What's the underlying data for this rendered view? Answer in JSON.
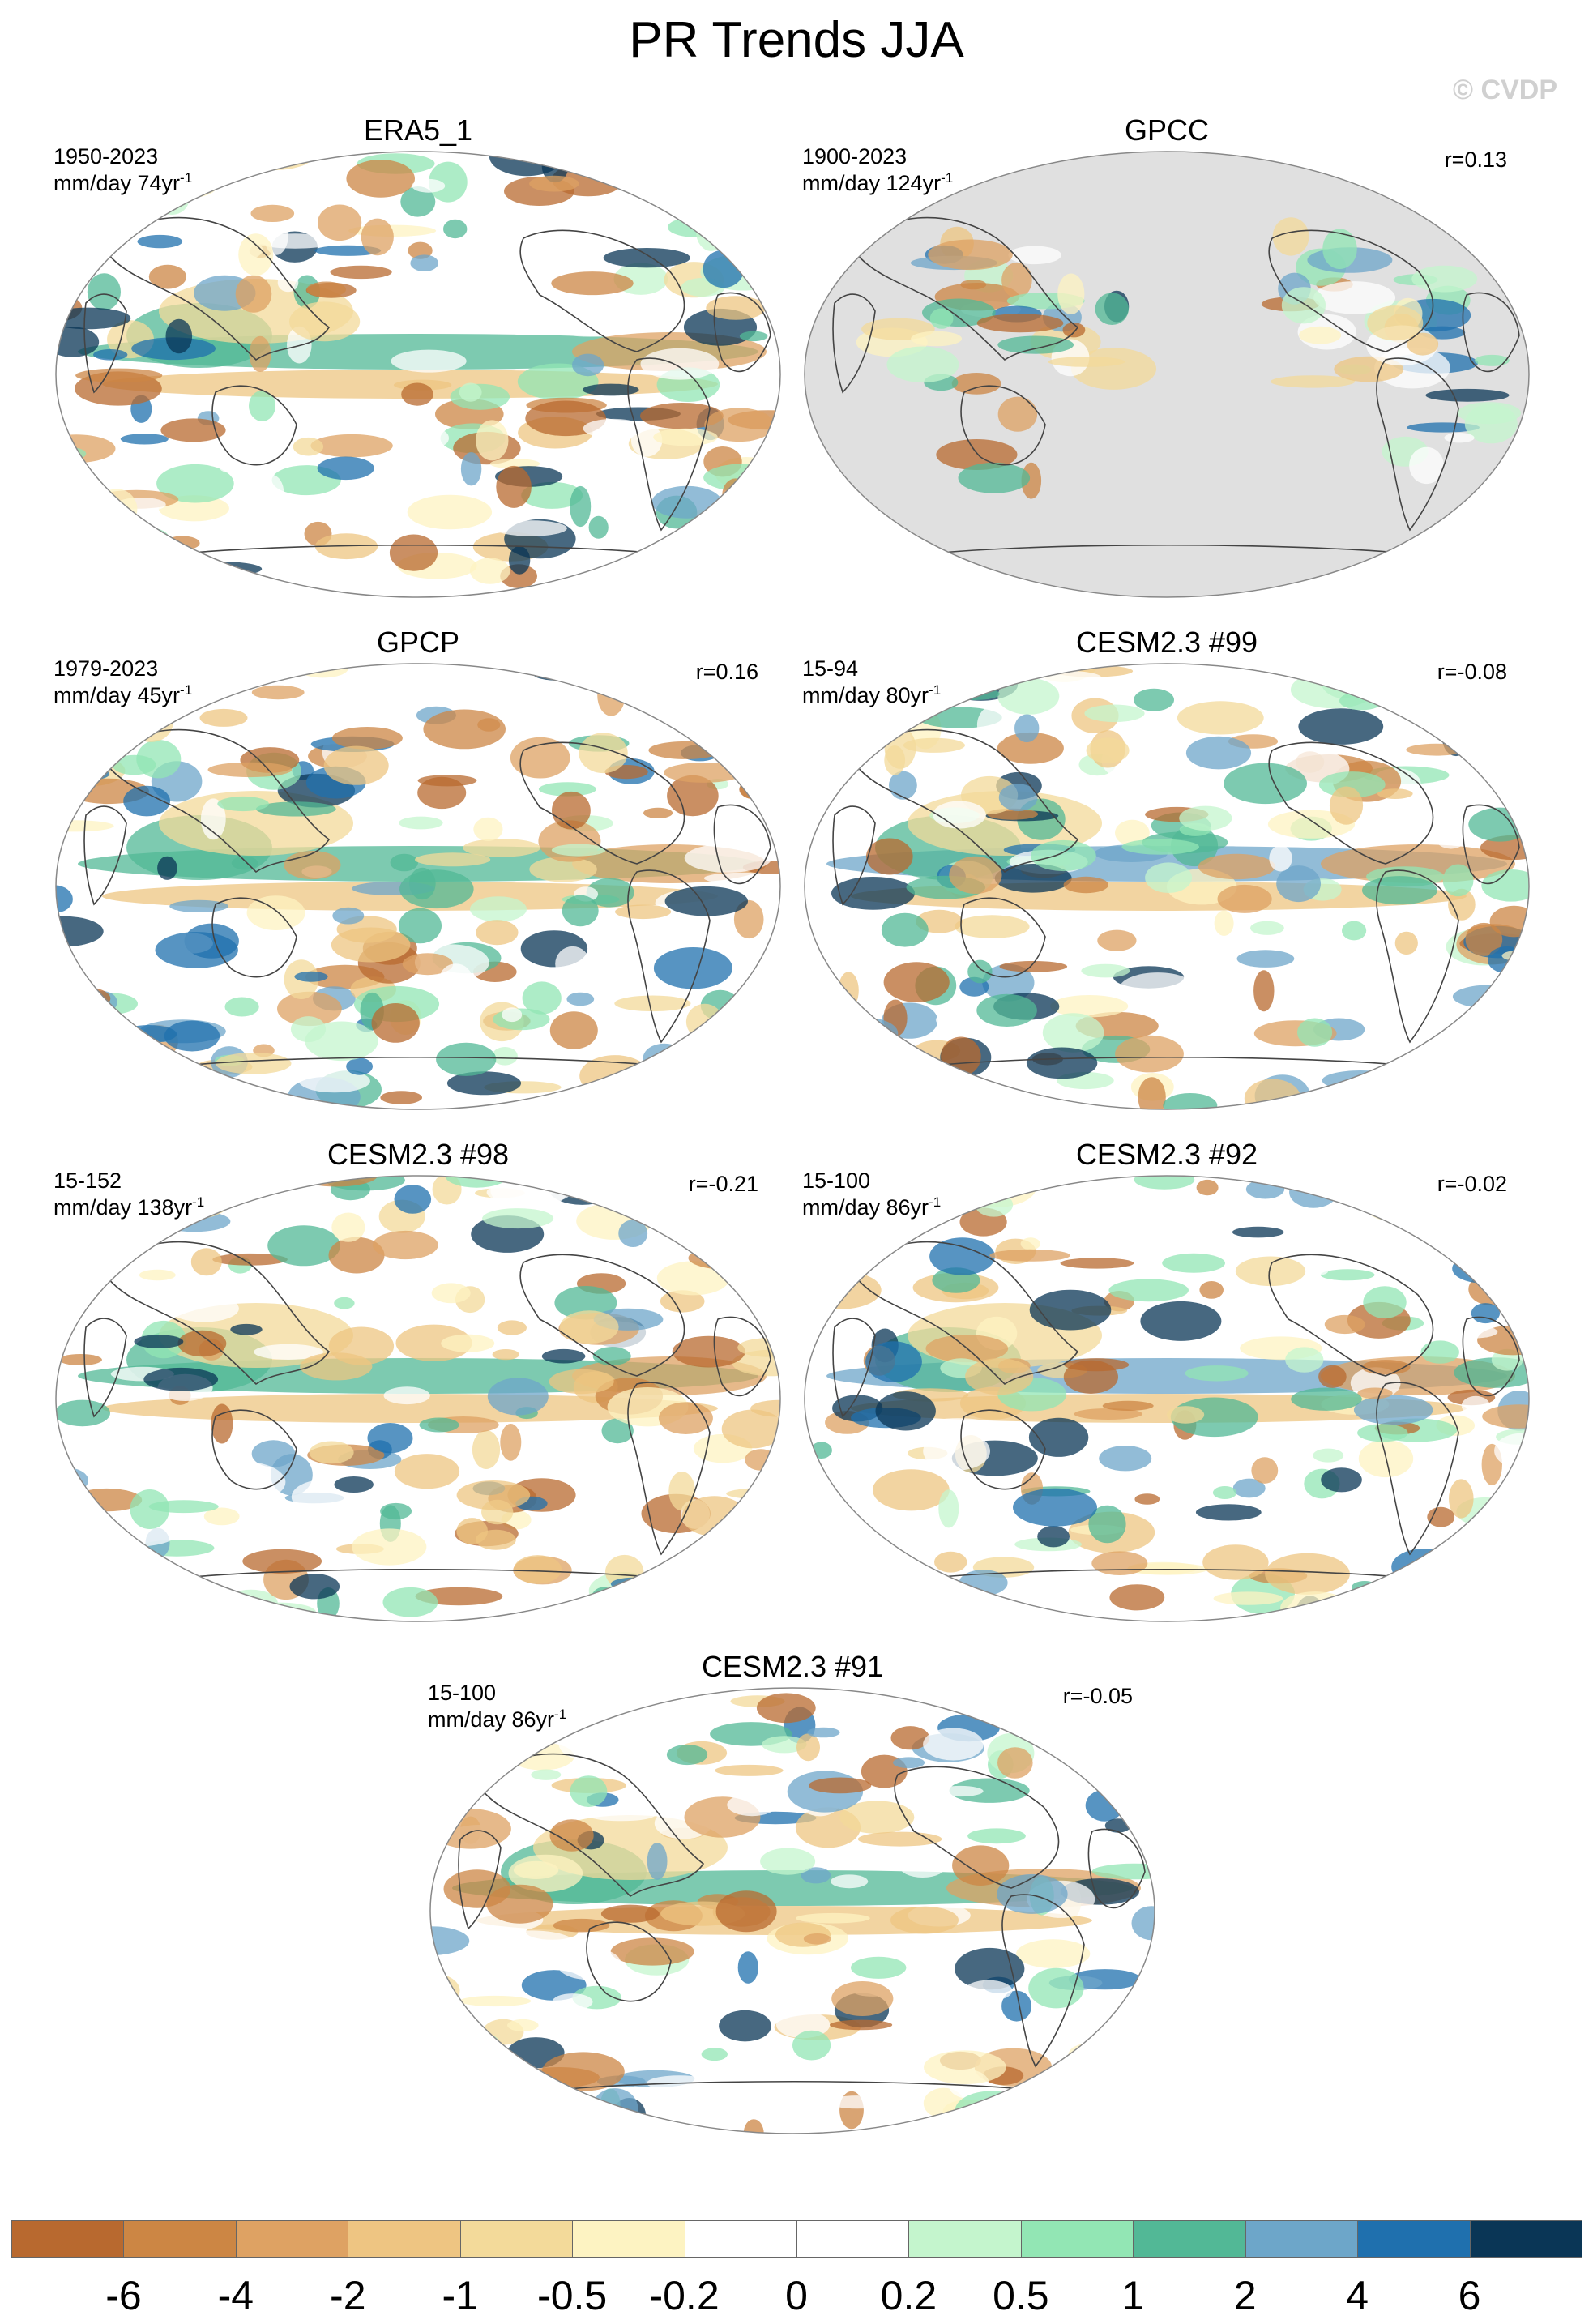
{
  "chart_data": {
    "type": "heatmap",
    "title": "PR Trends JJA",
    "watermark": "© CVDP",
    "projection": "Robinson (Pacific-centered)",
    "colorbar": {
      "labels": [
        "-6",
        "-4",
        "-2",
        "-1",
        "-0.5",
        "-0.2",
        "0",
        "0.2",
        "0.5",
        "1",
        "2",
        "4",
        "6"
      ],
      "colors": [
        "#b8692f",
        "#cc8644",
        "#dea263",
        "#eec582",
        "#f3da9a",
        "#fdf3c2",
        "#ffffff",
        "#ffffff",
        "#c4f5cd",
        "#92e6b4",
        "#52b896",
        "#6da6c9",
        "#1f70ae",
        "#0a3656"
      ]
    },
    "panels": [
      {
        "name": "ERA5_1",
        "period": "1950-2023",
        "units": "mm/day 74yr",
        "unit_exp": "-1",
        "corr": ""
      },
      {
        "name": "GPCC",
        "period": "1900-2023",
        "units": "mm/day 124yr",
        "unit_exp": "-1",
        "corr": "r=0.13"
      },
      {
        "name": "GPCP",
        "period": "1979-2023",
        "units": "mm/day 45yr",
        "unit_exp": "-1",
        "corr": "r=0.16"
      },
      {
        "name": "CESM2.3 #99",
        "period": "15-94",
        "units": "mm/day 80yr",
        "unit_exp": "-1",
        "corr": "r=-0.08"
      },
      {
        "name": "CESM2.3 #98",
        "period": "15-152",
        "units": "mm/day 138yr",
        "unit_exp": "-1",
        "corr": "r=-0.21"
      },
      {
        "name": "CESM2.3 #92",
        "period": "15-100",
        "units": "mm/day 86yr",
        "unit_exp": "-1",
        "corr": "r=-0.02"
      },
      {
        "name": "CESM2.3 #91",
        "period": "15-100",
        "units": "mm/day 86yr",
        "unit_exp": "-1",
        "corr": "r=-0.05"
      }
    ]
  }
}
